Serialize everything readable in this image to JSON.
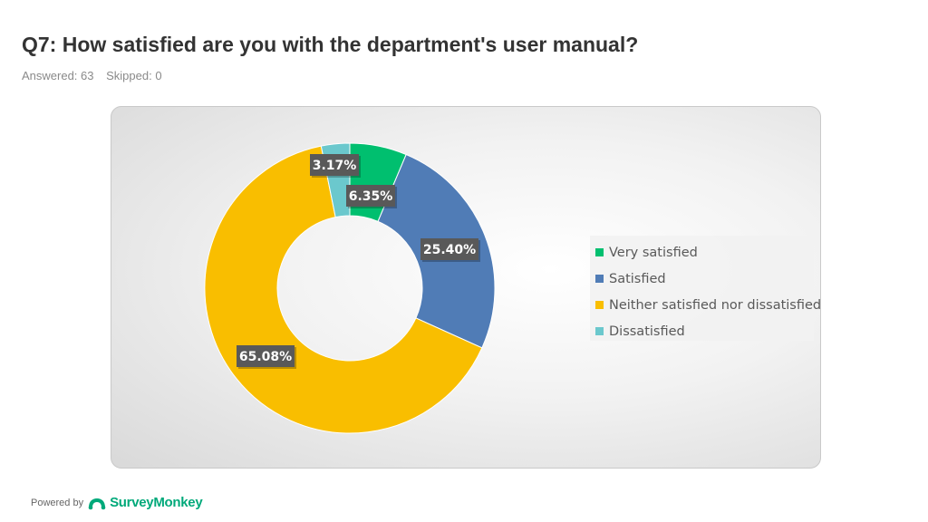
{
  "header": {
    "title": "Q7: How satisfied are you with the department's user manual?",
    "answered": "Answered: 63",
    "skipped": "Skipped: 0"
  },
  "footer": {
    "powered_by": "Powered by",
    "brand": "SurveyMonkey",
    "brand_icon": "surveymonkey-logo-icon"
  },
  "chart_data": {
    "type": "pie",
    "donut": true,
    "title": "",
    "legend_position": "right",
    "categories": [
      "Very satisfied",
      "Satisfied",
      "Neither satisfied nor dissatisfied",
      "Dissatisfied"
    ],
    "values": [
      6.35,
      25.4,
      65.08,
      3.17
    ],
    "labels": [
      "6.35%",
      "25.40%",
      "65.08%",
      "3.17%"
    ],
    "colors": [
      "#00bf6f",
      "#507cb6",
      "#f9be00",
      "#6bc8cd"
    ]
  }
}
